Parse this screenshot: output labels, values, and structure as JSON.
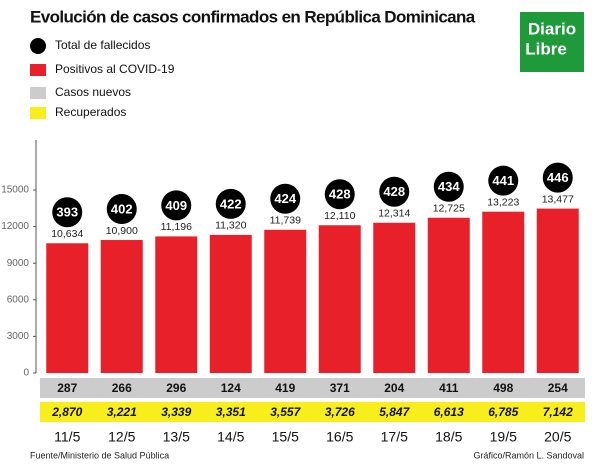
{
  "chart_data": {
    "type": "bar",
    "title": "Evolución de casos confirmados en República Dominicana",
    "categories": [
      "11/5",
      "12/5",
      "13/5",
      "14/5",
      "15/5",
      "16/5",
      "17/5",
      "18/5",
      "19/5",
      "20/5"
    ],
    "series": [
      {
        "name": "Total de fallecidos",
        "color": "#000000",
        "kind": "badge",
        "values": [
          393,
          402,
          409,
          422,
          424,
          428,
          428,
          434,
          441,
          446
        ]
      },
      {
        "name": "Positivos al COVID-19",
        "color": "#e8202a",
        "kind": "bar",
        "values": [
          10634,
          10900,
          11196,
          11320,
          11739,
          12110,
          12314,
          12725,
          13223,
          13477
        ],
        "value_labels": [
          "10,634",
          "10,900",
          "11,196",
          "11,320",
          "11,739",
          "12,110",
          "12,314",
          "12,725",
          "13,223",
          "13,477"
        ]
      },
      {
        "name": "Casos nuevos",
        "color": "#cccccc",
        "kind": "row",
        "values": [
          287,
          266,
          296,
          124,
          419,
          371,
          204,
          411,
          498,
          254
        ]
      },
      {
        "name": "Recuperados",
        "color": "#f7ee1c",
        "kind": "row",
        "values": [
          2870,
          3221,
          3339,
          3351,
          3557,
          3726,
          5847,
          6613,
          6785,
          7142
        ],
        "value_labels": [
          "2,870",
          "3,221",
          "3,339",
          "3,351",
          "3,557",
          "3,726",
          "5,847",
          "6,613",
          "6,785",
          "7,142"
        ]
      }
    ],
    "ylim": [
      0,
      15000
    ],
    "yticks": [
      0,
      3000,
      6000,
      9000,
      12000,
      15000
    ]
  },
  "logo": [
    "Diario",
    "Libre"
  ],
  "source": "Fuente/Ministerio de Salud Pública",
  "credit": "Gráfico/Ramón L. Sandoval"
}
